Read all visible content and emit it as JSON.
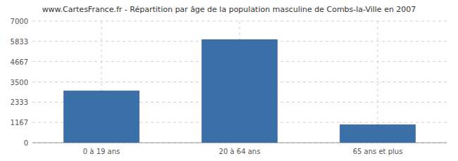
{
  "chart_data": {
    "type": "bar",
    "title": "www.CartesFrance.fr - Répartition par âge de la population masculine de Combs-la-Ville en 2007",
    "categories": [
      "0 à 19 ans",
      "20 à 64 ans",
      "65 ans et plus"
    ],
    "values": [
      3000,
      5950,
      1050
    ],
    "color": "#3a6fa8",
    "ylim": [
      0,
      7000
    ],
    "yticks": [
      0,
      1167,
      2333,
      3500,
      4667,
      5833,
      7000
    ],
    "grid": true
  }
}
